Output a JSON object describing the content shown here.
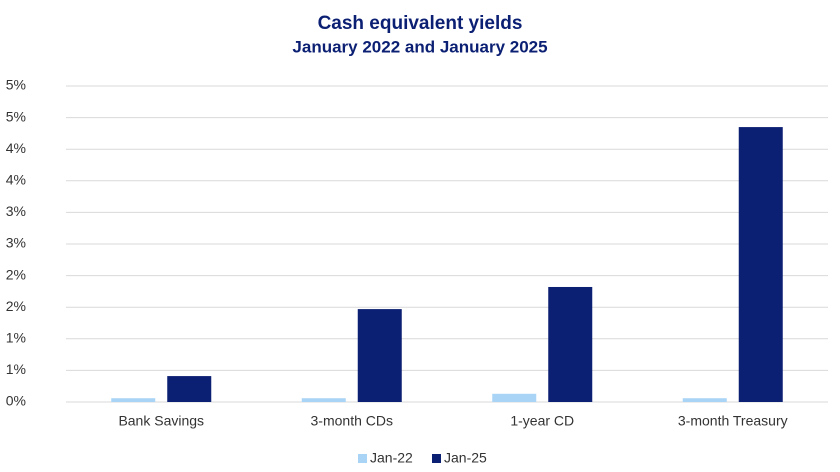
{
  "chart_data": {
    "type": "bar",
    "title": "Cash equivalent yields",
    "subtitle": "January 2022 and January 2025",
    "categories": [
      "Bank Savings",
      "3-month CDs",
      "1-year CD",
      "3-month Treasury"
    ],
    "series": [
      {
        "name": "Jan-22",
        "color": "#aad4f6",
        "values": [
          0.06,
          0.06,
          0.13,
          0.06
        ]
      },
      {
        "name": "Jan-25",
        "color": "#0b1f73",
        "values": [
          0.41,
          1.47,
          1.82,
          4.35
        ]
      }
    ],
    "ylim": [
      0,
      5
    ],
    "yticks": [
      {
        "value": 0,
        "label": "0%"
      },
      {
        "value": 0.5,
        "label": "1%"
      },
      {
        "value": 1,
        "label": "1%"
      },
      {
        "value": 1.5,
        "label": "2%"
      },
      {
        "value": 2,
        "label": "2%"
      },
      {
        "value": 2.5,
        "label": "3%"
      },
      {
        "value": 3,
        "label": "3%"
      },
      {
        "value": 3.5,
        "label": "4%"
      },
      {
        "value": 4,
        "label": "4%"
      },
      {
        "value": 4.5,
        "label": "5%"
      },
      {
        "value": 5,
        "label": "5%"
      }
    ],
    "grid": true,
    "legend": "bottom"
  }
}
